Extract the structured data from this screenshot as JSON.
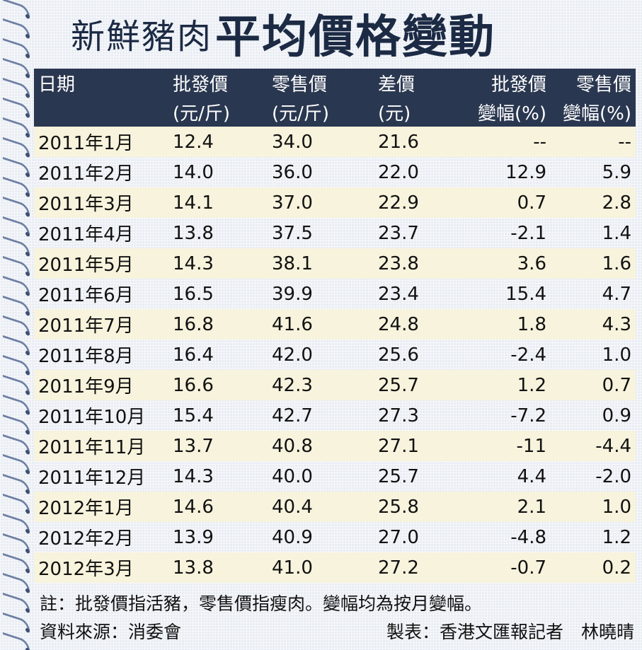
{
  "title": {
    "part1": "新鮮豬肉",
    "part2": "平均價格變動"
  },
  "table": {
    "headers": [
      {
        "line1": "日期",
        "line2": ""
      },
      {
        "line1": "批發價",
        "line2": "(元/斤)"
      },
      {
        "line1": "零售價",
        "line2": "(元/斤)"
      },
      {
        "line1": "差價",
        "line2": "(元)"
      },
      {
        "line1": "批發價",
        "line2": "變幅(%)"
      },
      {
        "line1": "零售價",
        "line2": "變幅(%)"
      }
    ],
    "rows": [
      [
        "2011年1月",
        "12.4",
        "34.0",
        "21.6",
        "--",
        "--"
      ],
      [
        "2011年2月",
        "14.0",
        "36.0",
        "22.0",
        "12.9",
        "5.9"
      ],
      [
        "2011年3月",
        "14.1",
        "37.0",
        "22.9",
        "0.7",
        "2.8"
      ],
      [
        "2011年4月",
        "13.8",
        "37.5",
        "23.7",
        "-2.1",
        "1.4"
      ],
      [
        "2011年5月",
        "14.3",
        "38.1",
        "23.8",
        "3.6",
        "1.6"
      ],
      [
        "2011年6月",
        "16.5",
        "39.9",
        "23.4",
        "15.4",
        "4.7"
      ],
      [
        "2011年7月",
        "16.8",
        "41.6",
        "24.8",
        "1.8",
        "4.3"
      ],
      [
        "2011年8月",
        "16.4",
        "42.0",
        "25.6",
        "-2.4",
        "1.0"
      ],
      [
        "2011年9月",
        "16.6",
        "42.3",
        "25.7",
        "1.2",
        "0.7"
      ],
      [
        "2011年10月",
        "15.4",
        "42.7",
        "27.3",
        "-7.2",
        "0.9"
      ],
      [
        "2011年11月",
        "13.7",
        "40.8",
        "27.1",
        "-11",
        "-4.4"
      ],
      [
        "2011年12月",
        "14.3",
        "40.0",
        "25.7",
        "4.4",
        "-2.0"
      ],
      [
        "2012年1月",
        "14.6",
        "40.4",
        "25.8",
        "2.1",
        "1.0"
      ],
      [
        "2012年2月",
        "13.9",
        "40.9",
        "27.0",
        "-4.8",
        "1.2"
      ],
      [
        "2012年3月",
        "13.8",
        "41.0",
        "27.2",
        "-0.7",
        "0.2"
      ]
    ]
  },
  "note": "註：批發價指活豬，零售價指瘦肉。變幅均為按月變幅。",
  "source": "資料來源：消委會",
  "credit": "製表：香港文匯報記者　林曉晴",
  "colors": {
    "header_bg": "#2a3750",
    "row_stripe": "#f7f3dc",
    "title": "#1c2a44",
    "spiral": "#6d7fa3"
  }
}
